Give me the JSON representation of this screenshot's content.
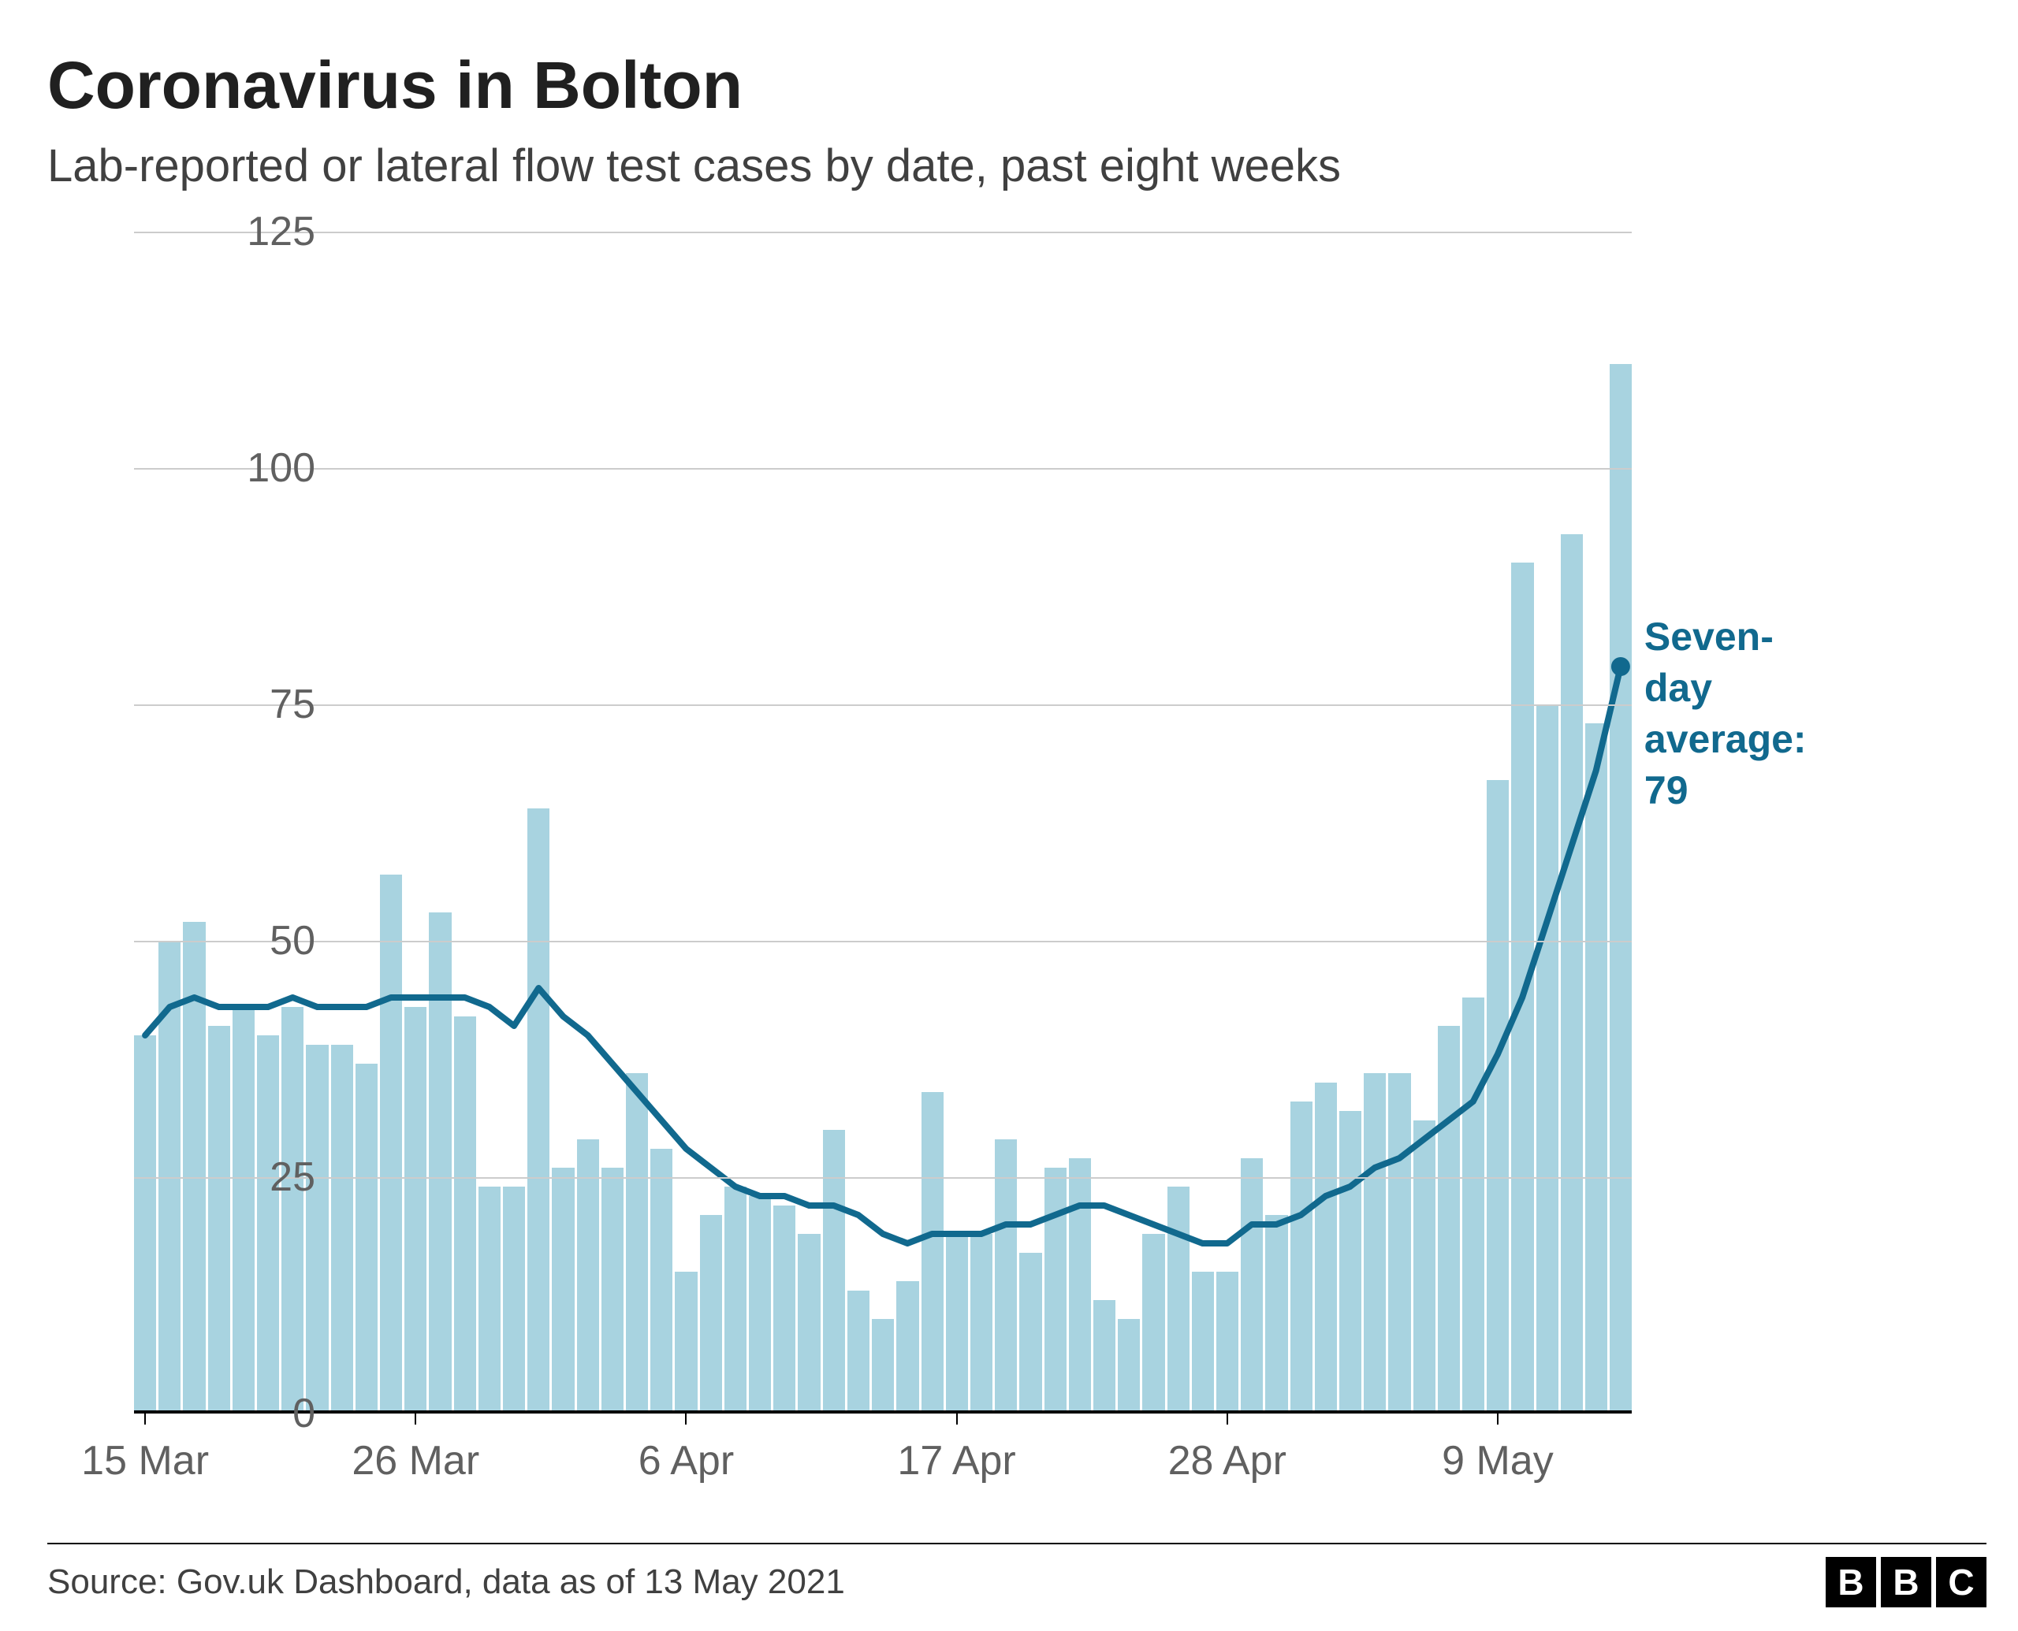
{
  "title": "Coronavirus in Bolton",
  "subtitle": "Lab-reported or lateral flow test cases by date, past eight weeks",
  "source": "Source: Gov.uk Dashboard, data as of 13 May 2021",
  "logo_letters": [
    "B",
    "B",
    "C"
  ],
  "chart": {
    "type": "bar_with_line",
    "bar_color": "#a8d3e0",
    "line_color": "#11698e",
    "line_width": 8,
    "marker_color": "#11698e",
    "marker_radius": 12,
    "gridline_color": "#cccccc",
    "baseline_color": "#000000",
    "background_color": "#ffffff",
    "title_fontsize": 84,
    "subtitle_fontsize": 58,
    "axis_label_fontsize": 52,
    "axis_label_color": "#606060",
    "annotation_color": "#11698e",
    "annotation_fontsize": 50,
    "annotation_text_line1": "Seven-day",
    "annotation_text_line2": "average:",
    "annotation_text_line3": "79",
    "ylim": [
      0,
      125
    ],
    "ytick_step": 25,
    "y_ticks": [
      0,
      25,
      50,
      75,
      100,
      125
    ],
    "x_tick_labels": [
      "15 Mar",
      "26 Mar",
      "6 Apr",
      "17 Apr",
      "28 Apr",
      "9 May"
    ],
    "x_tick_positions": [
      0,
      11,
      22,
      33,
      44,
      55
    ],
    "bar_values": [
      40,
      50,
      52,
      41,
      43,
      40,
      43,
      39,
      39,
      37,
      57,
      43,
      53,
      42,
      24,
      24,
      64,
      26,
      29,
      26,
      36,
      28,
      15,
      21,
      24,
      23,
      22,
      19,
      30,
      13,
      10,
      14,
      34,
      19,
      19,
      29,
      17,
      26,
      27,
      12,
      10,
      19,
      24,
      15,
      15,
      27,
      21,
      33,
      35,
      32,
      36,
      36,
      31,
      41,
      44,
      67,
      90,
      75,
      93,
      73,
      111
    ],
    "line_values": [
      40,
      43,
      44,
      43,
      43,
      43,
      44,
      43,
      43,
      43,
      44,
      44,
      44,
      44,
      43,
      41,
      45,
      42,
      40,
      37,
      34,
      31,
      28,
      26,
      24,
      23,
      23,
      22,
      22,
      21,
      19,
      18,
      19,
      19,
      19,
      20,
      20,
      21,
      22,
      22,
      21,
      20,
      19,
      18,
      18,
      20,
      20,
      21,
      23,
      24,
      26,
      27,
      29,
      31,
      33,
      38,
      44,
      52,
      60,
      68,
      79
    ]
  }
}
